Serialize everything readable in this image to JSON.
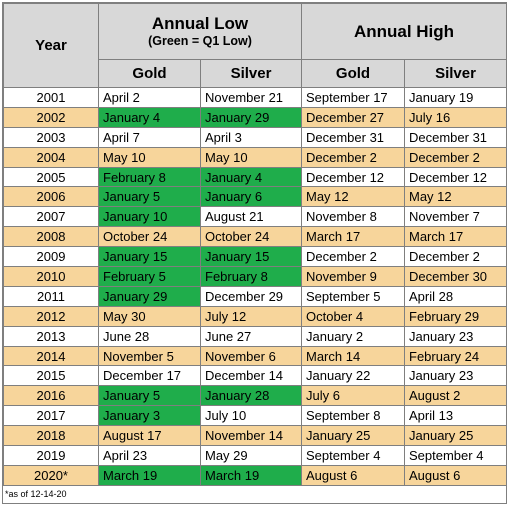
{
  "headers": {
    "year": "Year",
    "annual_low": "Annual Low",
    "annual_low_sub": "(Green = Q1 Low)",
    "annual_high": "Annual High",
    "gold": "Gold",
    "silver": "Silver"
  },
  "colors": {
    "q1_low": "#1fad4b",
    "alt_row": "#f7d59b",
    "header": "#d8d8d8"
  },
  "rows": [
    {
      "year": "2001",
      "low_gold": "April 2",
      "low_silver": "November 21",
      "high_gold": "September 17",
      "high_silver": "January 19",
      "low_gold_q1": false,
      "low_silver_q1": false
    },
    {
      "year": "2002",
      "low_gold": "January 4",
      "low_silver": "January 29",
      "high_gold": "December 27",
      "high_silver": "July 16",
      "low_gold_q1": true,
      "low_silver_q1": true
    },
    {
      "year": "2003",
      "low_gold": "April 7",
      "low_silver": "April 3",
      "high_gold": "December 31",
      "high_silver": "December 31",
      "low_gold_q1": false,
      "low_silver_q1": false
    },
    {
      "year": "2004",
      "low_gold": "May 10",
      "low_silver": "May 10",
      "high_gold": "December 2",
      "high_silver": "December 2",
      "low_gold_q1": false,
      "low_silver_q1": false
    },
    {
      "year": "2005",
      "low_gold": "February 8",
      "low_silver": "January 4",
      "high_gold": "December 12",
      "high_silver": "December 12",
      "low_gold_q1": true,
      "low_silver_q1": true
    },
    {
      "year": "2006",
      "low_gold": "January 5",
      "low_silver": "January 6",
      "high_gold": "May 12",
      "high_silver": "May 12",
      "low_gold_q1": true,
      "low_silver_q1": true
    },
    {
      "year": "2007",
      "low_gold": "January 10",
      "low_silver": "August 21",
      "high_gold": "November 8",
      "high_silver": "November 7",
      "low_gold_q1": true,
      "low_silver_q1": false
    },
    {
      "year": "2008",
      "low_gold": "October 24",
      "low_silver": "October 24",
      "high_gold": "March 17",
      "high_silver": "March 17",
      "low_gold_q1": false,
      "low_silver_q1": false
    },
    {
      "year": "2009",
      "low_gold": "January 15",
      "low_silver": "January 15",
      "high_gold": "December 2",
      "high_silver": "December 2",
      "low_gold_q1": true,
      "low_silver_q1": true
    },
    {
      "year": "2010",
      "low_gold": "February 5",
      "low_silver": "February 8",
      "high_gold": "November 9",
      "high_silver": "December 30",
      "low_gold_q1": true,
      "low_silver_q1": true
    },
    {
      "year": "2011",
      "low_gold": "January 29",
      "low_silver": "December 29",
      "high_gold": "September 5",
      "high_silver": "April 28",
      "low_gold_q1": true,
      "low_silver_q1": false
    },
    {
      "year": "2012",
      "low_gold": "May 30",
      "low_silver": "July 12",
      "high_gold": "October 4",
      "high_silver": "February 29",
      "low_gold_q1": false,
      "low_silver_q1": false
    },
    {
      "year": "2013",
      "low_gold": "June 28",
      "low_silver": "June 27",
      "high_gold": "January 2",
      "high_silver": "January 23",
      "low_gold_q1": false,
      "low_silver_q1": false
    },
    {
      "year": "2014",
      "low_gold": "November 5",
      "low_silver": "November 6",
      "high_gold": "March 14",
      "high_silver": "February 24",
      "low_gold_q1": false,
      "low_silver_q1": false
    },
    {
      "year": "2015",
      "low_gold": "December 17",
      "low_silver": "December 14",
      "high_gold": "January 22",
      "high_silver": "January 23",
      "low_gold_q1": false,
      "low_silver_q1": false
    },
    {
      "year": "2016",
      "low_gold": "January 5",
      "low_silver": "January 28",
      "high_gold": "July 6",
      "high_silver": "August 2",
      "low_gold_q1": true,
      "low_silver_q1": true
    },
    {
      "year": "2017",
      "low_gold": "January 3",
      "low_silver": "July 10",
      "high_gold": "September 8",
      "high_silver": "April 13",
      "low_gold_q1": true,
      "low_silver_q1": false
    },
    {
      "year": "2018",
      "low_gold": "August 17",
      "low_silver": "November 14",
      "high_gold": "January 25",
      "high_silver": "January 25",
      "low_gold_q1": false,
      "low_silver_q1": false
    },
    {
      "year": "2019",
      "low_gold": "April 23",
      "low_silver": "May 29",
      "high_gold": "September 4",
      "high_silver": "September 4",
      "low_gold_q1": false,
      "low_silver_q1": false
    },
    {
      "year": "2020*",
      "low_gold": "March 19",
      "low_silver": "March 19",
      "high_gold": "August 6",
      "high_silver": "August 6",
      "low_gold_q1": true,
      "low_silver_q1": true
    }
  ],
  "footnote": "*as of 12-14-20"
}
